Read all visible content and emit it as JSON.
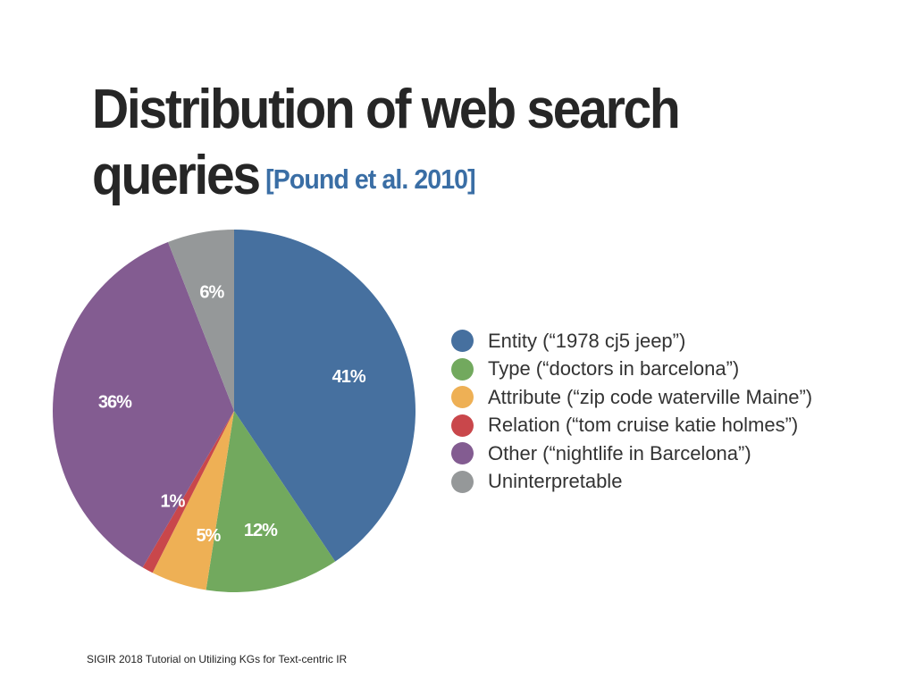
{
  "slide": {
    "title_line1": "Distribution of web search",
    "title_line2": "queries",
    "citation": "[Pound et al. 2010]",
    "footer": "SIGIR 2018 Tutorial on Utilizing KGs for Text-centric IR"
  },
  "chart_data": {
    "type": "pie",
    "title": "",
    "start_angle_deg": 0,
    "direction": "clockwise",
    "legend_position": "right",
    "slices": [
      {
        "name": "Entity (“1978 cj5 jeep”)",
        "value": 41,
        "label": "41%",
        "color": "#46709f"
      },
      {
        "name": "Type (“doctors in barcelona”)",
        "value": 12,
        "label": "12%",
        "color": "#72a95e"
      },
      {
        "name": "Attribute (“zip code waterville Maine”)",
        "value": 5,
        "label": "5%",
        "color": "#eeb055"
      },
      {
        "name": "Relation (“tom cruise katie holmes”)",
        "value": 1,
        "label": "1%",
        "color": "#c9474b"
      },
      {
        "name": "Other (“nightlife in Barcelona”)",
        "value": 36,
        "label": "36%",
        "color": "#835c91"
      },
      {
        "name": "Uninterpretable",
        "value": 6,
        "label": "6%",
        "color": "#959899"
      }
    ]
  }
}
